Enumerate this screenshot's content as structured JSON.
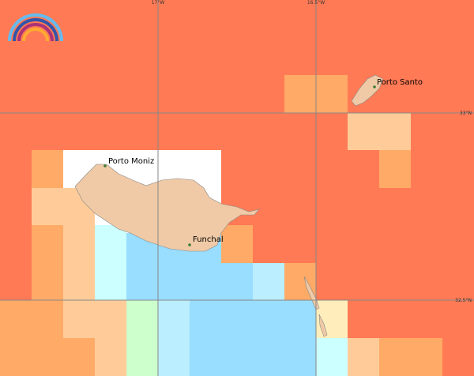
{
  "map": {
    "longitude_labels": [
      "17°W",
      "16.5°W"
    ],
    "latitude_labels": [
      "33°N",
      "32.5°N"
    ],
    "places": [
      "Porto Moniz",
      "Porto Santo",
      "Funchal"
    ]
  }
}
